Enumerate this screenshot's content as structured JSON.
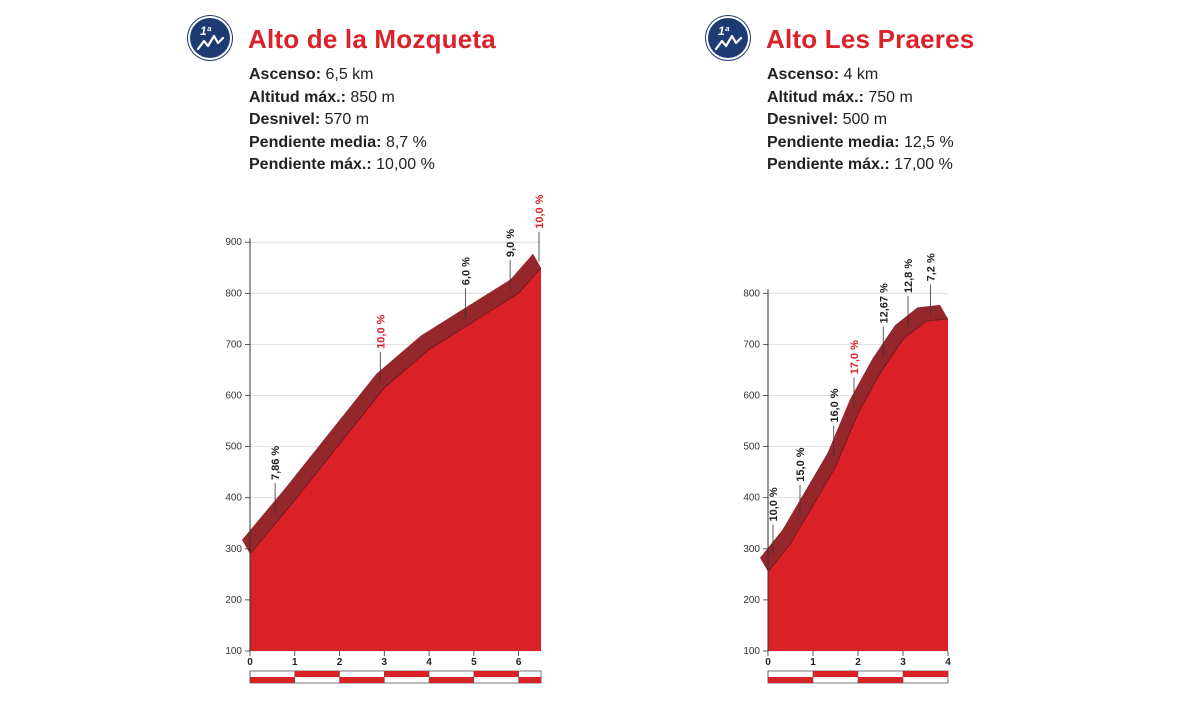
{
  "climbs": [
    {
      "badge": "1ª",
      "title": "Alto de la Mozqueta",
      "stats": [
        {
          "label": "Ascenso:",
          "value": "6,5 km"
        },
        {
          "label": "Altitud máx.:",
          "value": "850 m"
        },
        {
          "label": "Desnivel:",
          "value": "570 m"
        },
        {
          "label": "Pendiente media:",
          "value": "8,7 %"
        },
        {
          "label": "Pendiente máx.:",
          "value": "10,00 %"
        }
      ]
    },
    {
      "badge": "1ª",
      "title": "Alto Les Praeres",
      "stats": [
        {
          "label": "Ascenso:",
          "value": "4 km"
        },
        {
          "label": "Altitud máx.:",
          "value": "750 m"
        },
        {
          "label": "Desnivel:",
          "value": "500 m"
        },
        {
          "label": "Pendiente media:",
          "value": "12,5 %"
        },
        {
          "label": "Pendiente máx.:",
          "value": "17,00 %"
        }
      ]
    }
  ],
  "colors": {
    "profile_fill": "#da2128",
    "profile_edge": "#8e1b20",
    "badge_bg": "#1d3a72",
    "title": "#d8232a",
    "highlight_label": "#d8232a"
  },
  "chart_data": [
    {
      "type": "area",
      "title": "Alto de la Mozqueta",
      "xlabel": "",
      "ylabel": "",
      "xlim": [
        0,
        6.5
      ],
      "ylim": [
        100,
        900
      ],
      "x_ticks": [
        "0",
        "1",
        "2",
        "3",
        "4",
        "5",
        "6"
      ],
      "y_ticks": [
        "100",
        "200",
        "300",
        "400",
        "500",
        "600",
        "700",
        "800",
        "900"
      ],
      "grid": true,
      "x": [
        0,
        1,
        2,
        3,
        4,
        5,
        6,
        6.5
      ],
      "y": [
        290,
        395,
        505,
        615,
        690,
        745,
        800,
        850
      ],
      "gradients": [
        {
          "label": "7,86 %",
          "x": 0.65,
          "highlight": false
        },
        {
          "label": "10,0 %",
          "x": 3.0,
          "highlight": true
        },
        {
          "label": "6,0 %",
          "x": 4.9,
          "highlight": false
        },
        {
          "label": "9,0 %",
          "x": 5.9,
          "highlight": false
        },
        {
          "label": "10,0 %",
          "x": 6.5,
          "highlight": true
        }
      ]
    },
    {
      "type": "area",
      "title": "Alto Les Praeres",
      "xlabel": "",
      "ylabel": "",
      "xlim": [
        0,
        4
      ],
      "ylim": [
        100,
        800
      ],
      "x_ticks": [
        "0",
        "1",
        "2",
        "3",
        "4"
      ],
      "y_ticks": [
        "100",
        "200",
        "300",
        "400",
        "500",
        "600",
        "700",
        "800"
      ],
      "grid": true,
      "x": [
        0,
        0.5,
        1,
        1.5,
        2,
        2.5,
        3,
        3.5,
        4
      ],
      "y": [
        255,
        310,
        385,
        460,
        565,
        645,
        710,
        745,
        750
      ],
      "gradients": [
        {
          "label": "10,0 %",
          "x": 0.2,
          "highlight": false
        },
        {
          "label": "15,0 %",
          "x": 0.8,
          "highlight": false
        },
        {
          "label": "16,0 %",
          "x": 1.55,
          "highlight": false
        },
        {
          "label": "17,0 %",
          "x": 2.0,
          "highlight": true
        },
        {
          "label": "12,67 %",
          "x": 2.65,
          "highlight": false
        },
        {
          "label": "12,8 %",
          "x": 3.2,
          "highlight": false
        },
        {
          "label": "7,2 %",
          "x": 3.7,
          "highlight": false
        }
      ]
    }
  ]
}
